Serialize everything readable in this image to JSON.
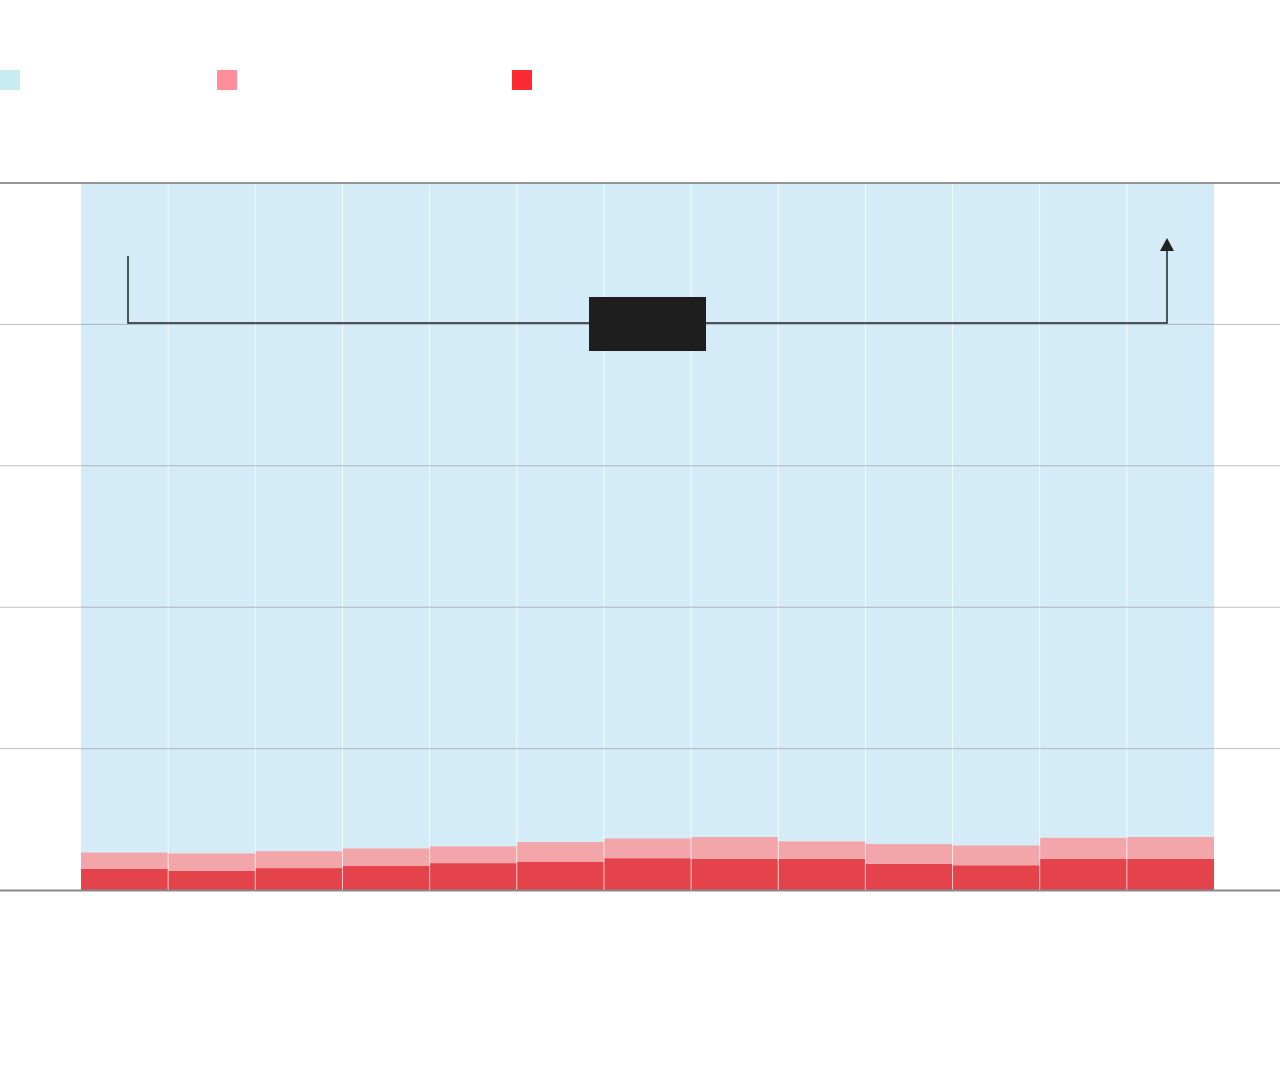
{
  "chart_data": {
    "type": "bar",
    "stacked": true,
    "title": "",
    "xlabel": "",
    "ylabel": "",
    "ylim": [
      0,
      100
    ],
    "grid": true,
    "legend_position": "top-left",
    "categories": [
      "",
      "",
      "",
      "",
      "",
      "",
      "",
      "",
      "",
      "",
      "",
      "",
      ""
    ],
    "series": [
      {
        "color": "#e5434b",
        "values": [
          3.0,
          2.7,
          3.1,
          3.4,
          3.8,
          4.0,
          4.5,
          4.4,
          4.4,
          3.7,
          3.5,
          4.4,
          4.4
        ]
      },
      {
        "color": "#f2a6aa",
        "values": [
          2.3,
          2.5,
          2.4,
          2.5,
          2.4,
          2.8,
          2.8,
          3.1,
          2.5,
          2.8,
          2.8,
          3.0,
          3.1
        ]
      },
      {
        "color": "#d4ebf8",
        "values": [
          94.7,
          94.8,
          94.5,
          94.1,
          93.8,
          93.2,
          92.7,
          92.5,
          93.1,
          93.5,
          93.7,
          92.6,
          92.5
        ]
      }
    ],
    "legend_colors": [
      "#c9ecf2",
      "#fc8f9a",
      "#fd2a33"
    ],
    "annotation": {
      "type": "bracket-arrow",
      "label_box_color": "#1e1e1e"
    }
  }
}
